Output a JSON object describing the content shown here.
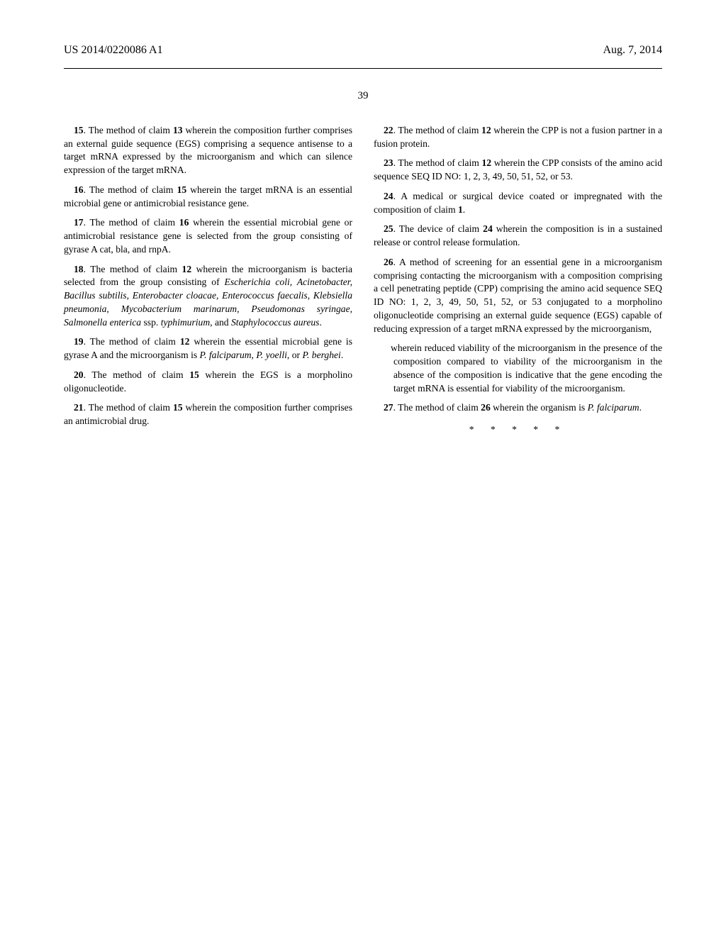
{
  "header": {
    "pub_number": "US 2014/0220086 A1",
    "pub_date": "Aug. 7, 2014",
    "page_number": "39"
  },
  "claims": {
    "c15": {
      "num": "15",
      "ref": "13",
      "text_before": ". The method of claim ",
      "text_after": " wherein the composition further comprises an external guide sequence (EGS) comprising a sequence antisense to a target mRNA expressed by the microorganism and which can silence expression of the target mRNA."
    },
    "c16": {
      "num": "16",
      "ref": "15",
      "text_before": ". The method of claim ",
      "text_after": " wherein the target mRNA is an essential microbial gene or antimicrobial resistance gene."
    },
    "c17": {
      "num": "17",
      "ref": "16",
      "text_before": ". The method of claim ",
      "text_after": " wherein the essential microbial gene or antimicrobial resistance gene is selected from the group consisting of gyrase A cat, bla, and rnpA."
    },
    "c18": {
      "num": "18",
      "ref": "12",
      "text_before": ". The method of claim ",
      "text_after_a": " wherein the microorganism is bacteria selected from the group consisting of ",
      "italic_a": "Escherichia coli, Acinetobacter, Bacillus subtilis, Enterobacter cloacae, Enterococcus faecalis, Klebsiella pneumonia, Mycobacterium marinarum, Pseudomonas syringae, Salmonella enterica",
      "text_mid": " ssp. ",
      "italic_b": "typhimurium",
      "text_mid2": ", and ",
      "italic_c": "Staphylococcus aureus",
      "period": "."
    },
    "c19": {
      "num": "19",
      "ref": "12",
      "text_before": ". The method of claim ",
      "text_after_a": " wherein the essential microbial gene is gyrase A and the microorganism is ",
      "italic_a": "P. falciparum, P. yoelli",
      "text_mid": ", or ",
      "italic_b": "P. berghei",
      "period": "."
    },
    "c20": {
      "num": "20",
      "ref": "15",
      "text_before": ". The method of claim ",
      "text_after": " wherein the EGS is a morpholino oligonucleotide."
    },
    "c21": {
      "num": "21",
      "ref": "15",
      "text_before": ". The method of claim ",
      "text_after": " wherein the composition further comprises an antimicrobial drug."
    },
    "c22": {
      "num": "22",
      "ref": "12",
      "text_before": ". The method of claim ",
      "text_after": " wherein the CPP is not a fusion partner in a fusion protein."
    },
    "c23": {
      "num": "23",
      "ref": "12",
      "text_before": ". The method of claim ",
      "text_after": " wherein the CPP consists of the amino acid sequence SEQ ID NO: 1, 2, 3, 49, 50, 51, 52, or 53."
    },
    "c24": {
      "num": "24",
      "ref": "1",
      "text_before": ". A medical or surgical device coated or impregnated with the composition of claim ",
      "period": "."
    },
    "c25": {
      "num": "25",
      "ref": "24",
      "text_before": ". The device of claim ",
      "text_after": " wherein the composition is in a sustained release or control release formulation."
    },
    "c26": {
      "num": "26",
      "text_a": ". A method of screening for an essential gene in a microorganism comprising contacting the microorganism with a composition comprising a cell penetrating peptide (CPP) comprising the amino acid sequence SEQ ID NO: 1, 2, 3, 49, 50, 51, 52, or 53 conjugated to a morpholino oligonucleotide comprising an external guide sequence (EGS) capable of reducing expression of a target mRNA expressed by the microorganism,",
      "wherein": "wherein reduced viability of the microorganism in the presence of the composition compared to viability of the microorganism in the absence of the composition is indicative that the gene encoding the target mRNA is essential for viability of the microorganism."
    },
    "c27": {
      "num": "27",
      "ref": "26",
      "text_before": ". The method of claim ",
      "text_after_a": " wherein the organism is ",
      "italic_a": "P. falciparum",
      "period": "."
    }
  },
  "end_marks": "*   *   *   *   *"
}
